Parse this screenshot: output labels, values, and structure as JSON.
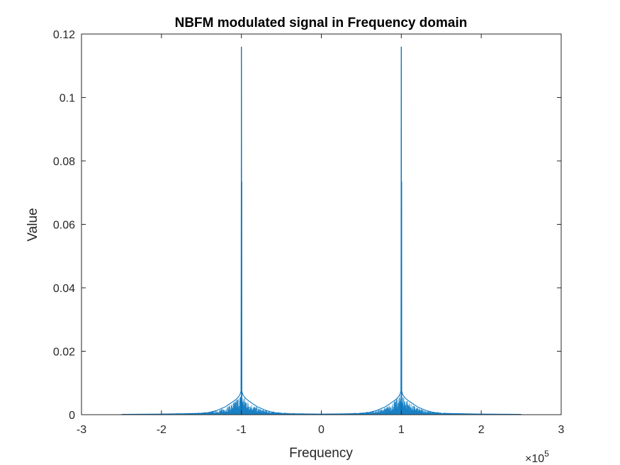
{
  "chart_data": {
    "type": "line",
    "title": "NBFM modulated signal in Frequency domain",
    "xlabel": "Frequency",
    "ylabel": "Value",
    "xlim": [
      -300000,
      300000
    ],
    "ylim": [
      0,
      0.12
    ],
    "x_exponent_label": "×10",
    "x_exponent_power": "5",
    "x_tick_labels": [
      "-3",
      "-2",
      "-1",
      "0",
      "1",
      "2",
      "3"
    ],
    "x_tick_values": [
      -300000,
      -200000,
      -100000,
      0,
      100000,
      200000,
      300000
    ],
    "y_tick_labels": [
      "0",
      "0.02",
      "0.04",
      "0.06",
      "0.08",
      "0.1",
      "0.12"
    ],
    "y_tick_values": [
      0,
      0.02,
      0.04,
      0.06,
      0.08,
      0.1,
      0.12
    ],
    "grid": false,
    "line_color": "#0072BD",
    "series": [
      {
        "x": [
          -250000,
          -200000,
          -150000,
          -140000,
          -130000,
          -120000,
          -110000,
          -105000,
          -102000,
          -100500,
          -100000,
          -99500,
          -98000,
          -95000,
          -90000,
          -85000,
          -80000,
          -70000,
          -60000,
          -50000,
          0,
          50000,
          60000,
          70000,
          80000,
          85000,
          90000,
          95000,
          98000,
          99500,
          100000,
          100500,
          102000,
          105000,
          110000,
          120000,
          130000,
          140000,
          150000,
          200000,
          250000
        ],
        "y": [
          0.0001,
          0.0002,
          0.0004,
          0.0007,
          0.0014,
          0.0025,
          0.0042,
          0.0052,
          0.0062,
          0.0074,
          0.116,
          0.0074,
          0.0062,
          0.0052,
          0.0042,
          0.0033,
          0.0025,
          0.0014,
          0.0007,
          0.0003,
          0.0002,
          0.0003,
          0.0007,
          0.0014,
          0.0025,
          0.0033,
          0.0042,
          0.0052,
          0.0062,
          0.0074,
          0.116,
          0.0074,
          0.0062,
          0.0052,
          0.0042,
          0.0025,
          0.0014,
          0.0007,
          0.0004,
          0.0002,
          0.0001
        ]
      }
    ]
  }
}
